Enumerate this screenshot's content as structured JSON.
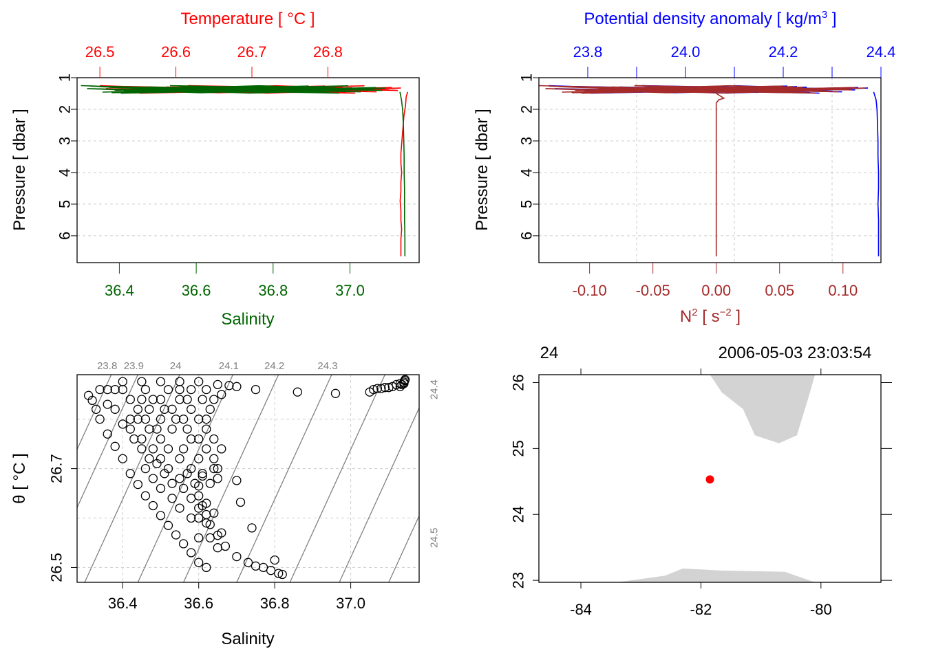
{
  "chart_data": [
    {
      "type": "line",
      "panel": "temperature-salinity-profile",
      "top_axis": {
        "label": "Temperature [ °C ]",
        "ticks": [
          "26.5",
          "26.6",
          "26.7",
          "26.8"
        ],
        "range": [
          26.47,
          26.92
        ],
        "color": "#ff0000"
      },
      "bottom_axis": {
        "label": "Salinity",
        "ticks": [
          "36.4",
          "36.6",
          "36.8",
          "37.0"
        ],
        "range": [
          36.29,
          37.18
        ],
        "color": "#006400"
      },
      "left_axis": {
        "label": "Pressure [ dbar ]",
        "ticks": [
          "1",
          "2",
          "3",
          "4",
          "5",
          "6"
        ],
        "range": [
          1,
          6.85
        ],
        "reversed": true
      },
      "grid": true,
      "series": [
        {
          "axis": "temperature",
          "color": "#ff0000",
          "x": [
            26.905,
            26.903,
            26.902,
            26.9,
            26.899,
            26.898,
            26.897,
            26.896,
            26.896,
            26.897,
            26.896,
            26.896,
            26.895,
            26.896,
            26.896,
            26.897,
            26.896,
            26.896,
            26.896
          ],
          "y": [
            1.45,
            1.6,
            1.9,
            2.2,
            2.5,
            2.8,
            3.1,
            3.4,
            3.7,
            4.0,
            4.3,
            4.6,
            4.9,
            5.2,
            5.5,
            5.8,
            6.1,
            6.4,
            6.65
          ]
        },
        {
          "axis": "salinity",
          "color": "#006400",
          "x": [
            37.13,
            37.134,
            37.137,
            37.139,
            37.14,
            37.141,
            37.141,
            37.142,
            37.142,
            37.142,
            37.143,
            37.143,
            37.143
          ],
          "y": [
            1.45,
            1.7,
            2.0,
            2.5,
            3.0,
            3.5,
            4.0,
            4.5,
            5.0,
            5.5,
            6.0,
            6.4,
            6.65
          ]
        }
      ]
    },
    {
      "type": "line",
      "panel": "density-n2-profile",
      "top_axis": {
        "label": "Potential density anomaly [ kg/m",
        "label_sup": "3",
        "label_end": " ]",
        "ticks": [
          "23.8",
          "24.0",
          "24.2",
          "24.4"
        ],
        "range": [
          23.7,
          24.4
        ],
        "color": "#0000ff"
      },
      "bottom_axis": {
        "label": "N",
        "label_sup": "2",
        "label_end": " [ s",
        "label_sup2": "−2",
        "label_end2": " ]",
        "ticks": [
          "-0.10",
          "-0.05",
          "0.00",
          "0.05",
          "0.10"
        ],
        "range": [
          -0.14,
          0.13
        ],
        "color": "#a52a2a"
      },
      "left_axis": {
        "label": "Pressure [ dbar ]",
        "ticks": [
          "1",
          "2",
          "3",
          "4",
          "5",
          "6"
        ],
        "range": [
          1,
          6.85
        ],
        "reversed": true
      },
      "grid": true,
      "series": [
        {
          "axis": "density",
          "color": "#0000ff",
          "x": [
            24.385,
            24.39,
            24.392,
            24.393,
            24.394,
            24.394,
            24.395,
            24.395,
            24.394,
            24.395,
            24.395,
            24.395
          ],
          "y": [
            1.45,
            1.7,
            2.0,
            2.5,
            3.0,
            3.5,
            4.0,
            4.5,
            5.0,
            5.5,
            6.0,
            6.65
          ]
        },
        {
          "axis": "n2",
          "color": "#a52a2a",
          "x": [
            0.0,
            0.004,
            0.006,
            0.002,
            0.0,
            0.0,
            0.0,
            0.0,
            0.0,
            0.0
          ],
          "y": [
            1.5,
            1.6,
            1.65,
            1.7,
            1.8,
            2.5,
            3.5,
            4.5,
            5.5,
            6.65
          ]
        }
      ]
    },
    {
      "type": "scatter",
      "panel": "ts-diagram",
      "xlabel": "Salinity",
      "ylabel": "θ [ °C ]",
      "xticks": [
        "36.4",
        "36.6",
        "36.8",
        "37.0"
      ],
      "yticks": [
        "26.5",
        "26.7"
      ],
      "xlim": [
        36.28,
        37.18
      ],
      "ylim": [
        26.47,
        26.89
      ],
      "isopycnal_labels": [
        "23.8",
        "23.9",
        "24",
        "24.1",
        "24.2",
        "24.3",
        "24.4",
        "24.5"
      ],
      "points": [
        [
          36.82,
          26.486
        ],
        [
          36.81,
          26.488
        ],
        [
          36.79,
          26.494
        ],
        [
          36.8,
          26.515
        ],
        [
          36.77,
          26.5
        ],
        [
          36.75,
          26.503
        ],
        [
          36.73,
          26.51
        ],
        [
          36.7,
          26.522
        ],
        [
          36.67,
          26.543
        ],
        [
          36.65,
          26.565
        ],
        [
          36.63,
          26.587
        ],
        [
          36.62,
          26.607
        ],
        [
          36.61,
          26.625
        ],
        [
          36.6,
          26.645
        ],
        [
          36.6,
          26.665
        ],
        [
          36.61,
          26.685
        ],
        [
          36.64,
          26.7
        ],
        [
          36.7,
          26.676
        ],
        [
          36.71,
          26.632
        ],
        [
          36.74,
          26.58
        ],
        [
          36.62,
          26.5
        ],
        [
          36.6,
          26.51
        ],
        [
          36.58,
          26.53
        ],
        [
          36.56,
          26.548
        ],
        [
          36.54,
          26.566
        ],
        [
          36.52,
          26.585
        ],
        [
          36.5,
          26.605
        ],
        [
          36.48,
          26.625
        ],
        [
          36.46,
          26.645
        ],
        [
          36.44,
          26.668
        ],
        [
          36.42,
          26.69
        ],
        [
          36.4,
          26.72
        ],
        [
          36.38,
          26.745
        ],
        [
          36.36,
          26.77
        ],
        [
          36.34,
          26.8
        ],
        [
          36.33,
          26.82
        ],
        [
          36.32,
          26.838
        ],
        [
          36.31,
          26.848
        ],
        [
          36.65,
          26.54
        ],
        [
          36.66,
          26.57
        ],
        [
          36.63,
          26.56
        ],
        [
          36.62,
          26.59
        ],
        [
          36.6,
          26.56
        ],
        [
          36.58,
          26.6
        ],
        [
          36.55,
          26.62
        ],
        [
          36.53,
          26.64
        ],
        [
          36.5,
          26.66
        ],
        [
          36.48,
          26.68
        ],
        [
          36.46,
          26.7
        ],
        [
          36.56,
          26.66
        ],
        [
          36.58,
          26.64
        ],
        [
          36.6,
          26.62
        ],
        [
          36.62,
          26.63
        ],
        [
          36.64,
          26.61
        ],
        [
          36.6,
          26.6
        ],
        [
          36.55,
          26.68
        ],
        [
          36.52,
          26.7
        ],
        [
          36.5,
          26.72
        ],
        [
          36.48,
          26.74
        ],
        [
          36.45,
          26.76
        ],
        [
          36.42,
          26.78
        ],
        [
          36.58,
          26.7
        ],
        [
          36.55,
          26.72
        ],
        [
          36.52,
          26.74
        ],
        [
          36.5,
          26.76
        ],
        [
          36.47,
          26.78
        ],
        [
          36.44,
          26.8
        ],
        [
          36.6,
          26.72
        ],
        [
          36.62,
          26.74
        ],
        [
          36.64,
          26.72
        ],
        [
          36.6,
          26.76
        ],
        [
          36.57,
          26.78
        ],
        [
          36.54,
          26.8
        ],
        [
          36.5,
          26.8
        ],
        [
          36.47,
          26.82
        ],
        [
          36.45,
          26.84
        ],
        [
          36.62,
          26.78
        ],
        [
          36.64,
          26.76
        ],
        [
          36.62,
          26.8
        ],
        [
          36.58,
          26.82
        ],
        [
          36.55,
          26.84
        ],
        [
          36.52,
          26.86
        ],
        [
          36.63,
          26.82
        ],
        [
          36.66,
          26.74
        ],
        [
          36.65,
          26.7
        ],
        [
          36.56,
          26.74
        ],
        [
          36.58,
          26.76
        ],
        [
          36.53,
          26.78
        ],
        [
          36.49,
          26.78
        ],
        [
          36.46,
          26.8
        ],
        [
          36.51,
          26.82
        ],
        [
          36.48,
          26.84
        ],
        [
          36.56,
          26.8
        ],
        [
          36.6,
          26.8
        ],
        [
          36.57,
          26.84
        ],
        [
          36.61,
          26.84
        ],
        [
          36.44,
          26.82
        ],
        [
          36.42,
          26.84
        ],
        [
          36.4,
          26.86
        ],
        [
          36.38,
          26.86
        ],
        [
          36.36,
          26.86
        ],
        [
          36.34,
          26.86
        ],
        [
          36.4,
          26.876
        ],
        [
          36.45,
          26.876
        ],
        [
          36.5,
          26.876
        ],
        [
          36.55,
          26.876
        ],
        [
          36.6,
          26.876
        ],
        [
          36.65,
          26.87
        ],
        [
          36.68,
          26.868
        ],
        [
          36.7,
          26.866
        ],
        [
          36.75,
          26.86
        ],
        [
          36.86,
          26.855
        ],
        [
          36.96,
          26.852
        ],
        [
          37.05,
          26.855
        ],
        [
          37.07,
          26.862
        ],
        [
          37.09,
          26.864
        ],
        [
          37.11,
          26.866
        ],
        [
          37.12,
          26.87
        ],
        [
          37.13,
          26.872
        ],
        [
          37.14,
          26.875
        ],
        [
          37.142,
          26.878
        ],
        [
          37.143,
          26.88
        ],
        [
          37.1,
          26.864
        ],
        [
          37.08,
          26.862
        ],
        [
          37.06,
          26.86
        ],
        [
          37.13,
          26.866
        ],
        [
          37.135,
          26.87
        ],
        [
          37.14,
          26.872
        ],
        [
          36.38,
          26.82
        ],
        [
          36.36,
          26.83
        ],
        [
          36.42,
          26.8
        ],
        [
          36.4,
          26.79
        ],
        [
          36.46,
          26.86
        ],
        [
          36.5,
          26.84
        ],
        [
          36.53,
          26.82
        ],
        [
          36.55,
          26.86
        ],
        [
          36.58,
          26.86
        ],
        [
          36.62,
          26.86
        ],
        [
          36.64,
          26.84
        ],
        [
          36.66,
          26.85
        ],
        [
          36.47,
          26.72
        ],
        [
          36.45,
          26.74
        ],
        [
          36.51,
          26.69
        ],
        [
          36.49,
          26.71
        ],
        [
          36.53,
          26.67
        ],
        [
          36.57,
          26.69
        ],
        [
          36.59,
          26.67
        ],
        [
          36.63,
          26.67
        ],
        [
          36.61,
          26.69
        ],
        [
          36.65,
          26.68
        ],
        [
          36.43,
          26.76
        ]
      ]
    },
    {
      "type": "map",
      "panel": "station-map",
      "top_labels": {
        "left": "24",
        "right": "2006-05-03 23:03:54"
      },
      "xticks": [
        "-84",
        "-82",
        "-80"
      ],
      "yticks": [
        "23",
        "24",
        "25",
        "26"
      ],
      "xlim": [
        -84.7,
        -79.0
      ],
      "ylim": [
        22.97,
        26.12
      ],
      "station": {
        "lon": -81.85,
        "lat": 24.53,
        "color": "#ff0000"
      },
      "land_color": "#d3d3d3",
      "land_north": [
        [
          -81.85,
          26.12
        ],
        [
          -80.1,
          26.12
        ],
        [
          -80.2,
          25.8
        ],
        [
          -80.4,
          25.2
        ],
        [
          -80.7,
          25.08
        ],
        [
          -81.1,
          25.2
        ],
        [
          -81.3,
          25.6
        ],
        [
          -81.65,
          25.85
        ]
      ],
      "land_south": [
        [
          -83.4,
          22.97
        ],
        [
          -82.6,
          23.07
        ],
        [
          -82.3,
          23.18
        ],
        [
          -81.7,
          23.15
        ],
        [
          -80.6,
          23.13
        ],
        [
          -80.1,
          22.97
        ]
      ]
    }
  ]
}
